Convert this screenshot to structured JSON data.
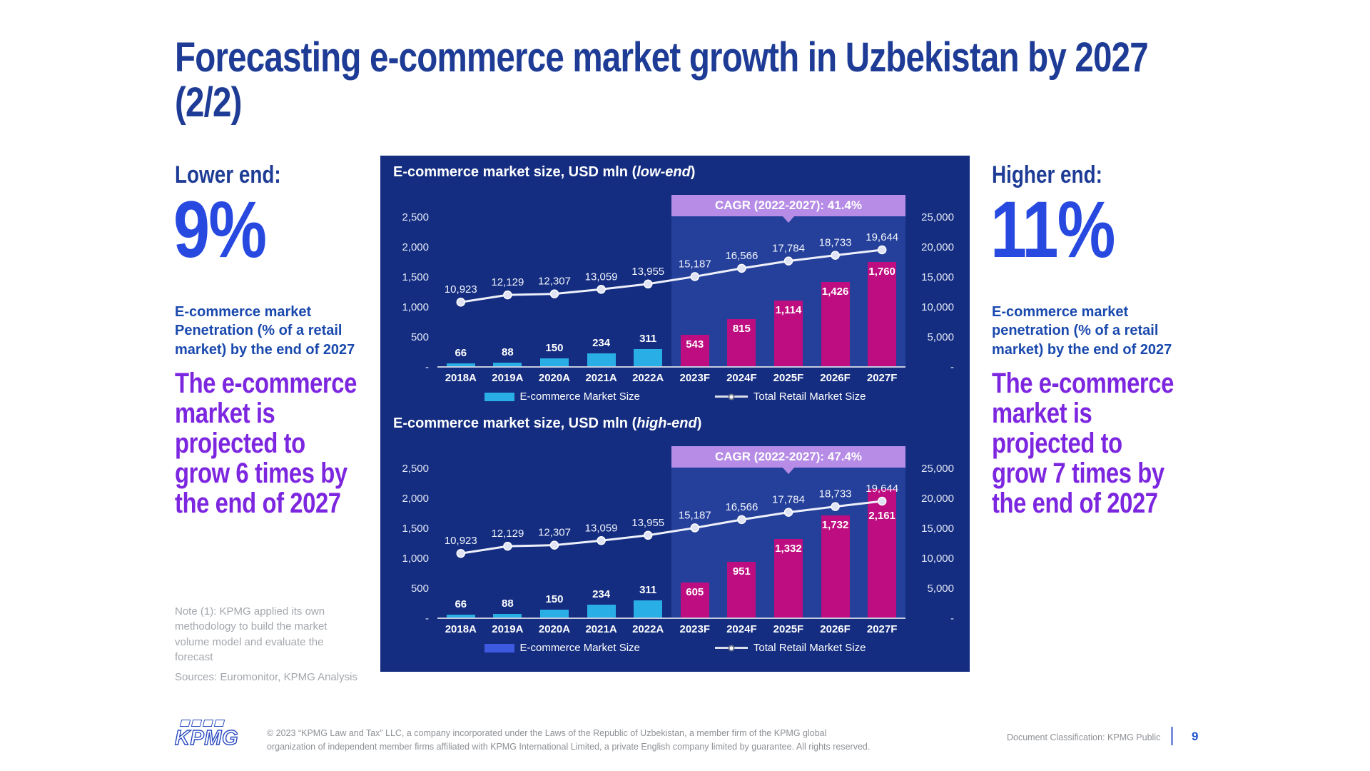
{
  "page": {
    "title_line1": "Forecasting e-commerce market growth in Uzbekistan by 2027",
    "title_line2": "(2/2)"
  },
  "left_panel": {
    "heading": "Lower end:",
    "percent": "9%",
    "description": "E-commerce market\nPenetration (% of a retail\nmarket) by the end of 2027",
    "highlight": "The e-commerce\nmarket is\nprojected to\ngrow 6 times by\nthe end of 2027",
    "note": "Note (1): KPMG applied its own\nmethodology to build the market\nvolume model and evaluate the\nforecast",
    "sources": "Sources: Euromonitor, KPMG Analysis"
  },
  "right_panel": {
    "heading": "Higher end:",
    "percent": "11%",
    "description": "E-commerce market\npenetration (% of a retail\nmarket) by the end of 2027",
    "highlight": "The e-commerce\nmarket is\nprojected to\ngrow 7 times by\nthe end of 2027"
  },
  "chart_data": [
    {
      "type": "bar+line",
      "title_full": "E-commerce market size, USD mln (low-end)",
      "title_prefix": "E-commerce market size, USD mln (",
      "title_italic": "low-end",
      "title_suffix": ")",
      "cagr_label": "CAGR (2022-2027): 41.4%",
      "categories": [
        "2018A",
        "2019A",
        "2020A",
        "2021A",
        "2022A",
        "2023F",
        "2024F",
        "2025F",
        "2026F",
        "2027F"
      ],
      "series": [
        {
          "name": "E-commerce Market Size",
          "type": "bar",
          "values": [
            66,
            88,
            150,
            234,
            311,
            543,
            815,
            1114,
            1426,
            1760
          ]
        },
        {
          "name": "Total Retail Market Size",
          "type": "line",
          "values": [
            10923,
            12129,
            12307,
            13059,
            13955,
            15187,
            16566,
            17784,
            18733,
            19644
          ]
        }
      ],
      "left_axis": {
        "ticks": [
          "2,500",
          "2,000",
          "1,500",
          "1,000",
          "500",
          "-"
        ],
        "max": 2500
      },
      "right_axis": {
        "ticks": [
          "25,000",
          "20,000",
          "15,000",
          "10,000",
          "5,000",
          "-"
        ],
        "max": 25000
      },
      "forecast_start_index": 5,
      "legend": [
        "E-commerce Market Size",
        "Total Retail Market Size"
      ],
      "colors": {
        "bar_actual": "#29AEE6",
        "bar_forecast": "#BE0D80",
        "legend_bar_swatch": "#29AEE6"
      }
    },
    {
      "type": "bar+line",
      "title_full": "E-commerce market size, USD mln (high-end)",
      "title_prefix": "E-commerce market size, USD mln (",
      "title_italic": "high-end",
      "title_suffix": ")",
      "cagr_label": "CAGR (2022-2027): 47.4%",
      "categories": [
        "2018A",
        "2019A",
        "2020A",
        "2021A",
        "2022A",
        "2023F",
        "2024F",
        "2025F",
        "2026F",
        "2027F"
      ],
      "series": [
        {
          "name": "E-commerce Market Size",
          "type": "bar",
          "values": [
            66,
            88,
            150,
            234,
            311,
            605,
            951,
            1332,
            1732,
            2161
          ]
        },
        {
          "name": "Total Retail Market Size",
          "type": "line",
          "values": [
            10923,
            12129,
            12307,
            13059,
            13955,
            15187,
            16566,
            17784,
            18733,
            19644
          ]
        }
      ],
      "left_axis": {
        "ticks": [
          "2,500",
          "2,000",
          "1,500",
          "1,000",
          "500",
          "-"
        ],
        "max": 2500
      },
      "right_axis": {
        "ticks": [
          "25,000",
          "20,000",
          "15,000",
          "10,000",
          "5,000",
          "-"
        ],
        "max": 25000
      },
      "forecast_start_index": 5,
      "legend": [
        "E-commerce Market Size",
        "Total Retail Market Size"
      ],
      "colors": {
        "bar_actual": "#29AEE6",
        "bar_forecast": "#BE0D80",
        "legend_bar_swatch": "#3D5AE0"
      }
    }
  ],
  "footer": {
    "logo_text": "KPMG",
    "copyright": "© 2023 “KPMG Law and Tax” LLC, a company incorporated under the Laws of the Republic of Uzbekistan, a member firm of the KPMG global\norganization of independent member firms affiliated with KPMG International Limited, a private English company limited by guarantee. All rights reserved.",
    "classification": "Document Classification: KPMG Public",
    "page_number": "9"
  },
  "colors": {
    "title_navy": "#1E3C96",
    "accent_blue": "#2749E0",
    "accent_purple": "#7D26E0",
    "panel_navy": "#142D80",
    "forecast_band": "#25409A",
    "cagr_badge": "#B68CE6",
    "bar_actual_cyan": "#29AEE6",
    "bar_forecast_magenta": "#BE0D80",
    "line_white": "#EDF0FA"
  }
}
